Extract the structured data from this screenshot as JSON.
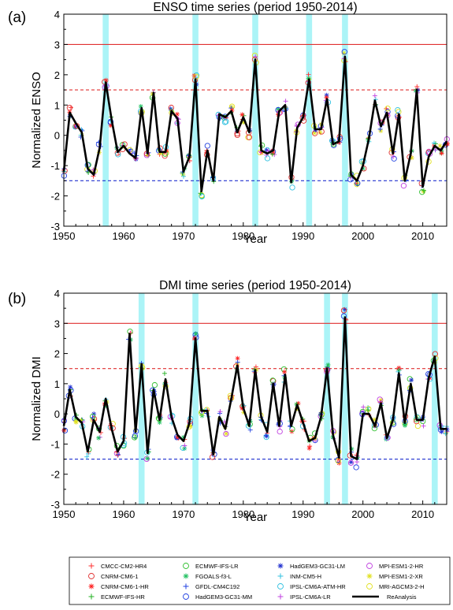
{
  "chart_data": [
    {
      "type": "line",
      "panel_label": "(a)",
      "title": "ENSO time series (period 1950-2014)",
      "xlabel": "Year",
      "ylabel": "Normalized ENSO",
      "xlim": [
        1950,
        2014
      ],
      "ylim": [
        -3,
        4
      ],
      "xticks": [
        "1950",
        "1960",
        "1970",
        "1980",
        "1990",
        "2000",
        "2010"
      ],
      "yticks": [
        "-3",
        "-2",
        "-1",
        "0",
        "1",
        "2",
        "3",
        "4"
      ],
      "ref_lines": [
        {
          "y": 3,
          "style": "solid",
          "color": "#e03030"
        },
        {
          "y": 1.5,
          "style": "dashed",
          "color": "#e03030"
        },
        {
          "y": -1.5,
          "style": "dashed",
          "color": "#2030d0"
        }
      ],
      "highlight_years": [
        1957,
        1972,
        1982,
        1991,
        1997
      ],
      "series": [
        {
          "name": "ReAnalysis",
          "x": [
            1950,
            1951,
            1952,
            1953,
            1954,
            1955,
            1956,
            1957,
            1958,
            1959,
            1960,
            1961,
            1962,
            1963,
            1964,
            1965,
            1966,
            1967,
            1968,
            1969,
            1970,
            1971,
            1972,
            1973,
            1974,
            1975,
            1976,
            1977,
            1978,
            1979,
            1980,
            1981,
            1982,
            1983,
            1984,
            1985,
            1986,
            1987,
            1988,
            1989,
            1990,
            1991,
            1992,
            1993,
            1994,
            1995,
            1996,
            1997,
            1998,
            1999,
            2000,
            2001,
            2002,
            2003,
            2004,
            2005,
            2006,
            2007,
            2008,
            2009,
            2010,
            2011,
            2012,
            2013,
            2014
          ],
          "y": [
            -1.2,
            0.75,
            0.4,
            0.1,
            -1.1,
            -1.3,
            -0.4,
            1.75,
            0.5,
            -0.55,
            -0.35,
            -0.6,
            -0.75,
            0.9,
            -0.6,
            1.4,
            -0.55,
            -0.55,
            0.8,
            0.55,
            -1.2,
            -0.7,
            1.85,
            -1.85,
            -0.5,
            -1.5,
            0.7,
            0.6,
            0.8,
            0.1,
            0.6,
            0.1,
            2.5,
            -0.5,
            -0.6,
            -0.5,
            0.8,
            1.0,
            -1.55,
            0.25,
            0.6,
            1.85,
            0.2,
            0.2,
            1.2,
            -0.3,
            -0.2,
            2.6,
            -1.3,
            -1.5,
            -1.0,
            -0.1,
            1.15,
            0.3,
            0.75,
            -0.6,
            0.7,
            -1.5,
            -0.6,
            1.5,
            -1.7,
            -0.7,
            -0.35,
            -0.5,
            -0.2
          ]
        }
      ]
    },
    {
      "type": "line",
      "panel_label": "(b)",
      "title": "DMI time series (period 1950-2014)",
      "xlabel": "Year",
      "ylabel": "Normalized DMI",
      "xlim": [
        1950,
        2014
      ],
      "ylim": [
        -3,
        4
      ],
      "xticks": [
        "1950",
        "1960",
        "1970",
        "1980",
        "1990",
        "2000",
        "2010"
      ],
      "yticks": [
        "-3",
        "-2",
        "-1",
        "0",
        "1",
        "2",
        "3",
        "4"
      ],
      "ref_lines": [
        {
          "y": 3,
          "style": "solid",
          "color": "#e03030"
        },
        {
          "y": 1.5,
          "style": "dashed",
          "color": "#e03030"
        },
        {
          "y": -1.5,
          "style": "dashed",
          "color": "#2030d0"
        }
      ],
      "highlight_years": [
        1963,
        1972,
        1994,
        1997,
        2012
      ],
      "series": [
        {
          "name": "ReAnalysis",
          "x": [
            1950,
            1951,
            1952,
            1953,
            1954,
            1955,
            1956,
            1957,
            1958,
            1959,
            1960,
            1961,
            1962,
            1963,
            1964,
            1965,
            1966,
            1967,
            1968,
            1969,
            1970,
            1971,
            1972,
            1973,
            1974,
            1975,
            1976,
            1977,
            1978,
            1979,
            1980,
            1981,
            1982,
            1983,
            1984,
            1985,
            1986,
            1987,
            1988,
            1989,
            1990,
            1991,
            1992,
            1993,
            1994,
            1995,
            1996,
            1997,
            1998,
            1999,
            2000,
            2001,
            2002,
            2003,
            2004,
            2005,
            2006,
            2007,
            2008,
            2009,
            2010,
            2011,
            2012,
            2013,
            2014
          ],
          "y": [
            -0.4,
            0.8,
            -0.1,
            -0.3,
            -1.25,
            -0.2,
            -0.6,
            0.5,
            -0.5,
            -1.25,
            -0.9,
            2.65,
            -0.6,
            1.65,
            -1.3,
            0.8,
            -0.2,
            1.15,
            -0.1,
            -0.7,
            -0.9,
            -0.3,
            2.5,
            0.1,
            0.1,
            -1.35,
            -0.1,
            -0.5,
            0.5,
            1.6,
            0.2,
            -0.4,
            1.45,
            -0.1,
            -0.6,
            1.0,
            -0.4,
            1.3,
            -0.4,
            0.3,
            -0.3,
            -0.9,
            -0.8,
            -0.1,
            1.5,
            -0.7,
            -1.45,
            3.2,
            -1.4,
            -1.5,
            0.0,
            0.0,
            -0.4,
            0.35,
            -0.8,
            -0.2,
            1.35,
            -0.3,
            1.0,
            -0.2,
            -0.2,
            1.2,
            1.9,
            -0.5,
            -0.5
          ]
        }
      ]
    }
  ],
  "legend": {
    "items": [
      {
        "label": "CMCC-CM2-HR4",
        "marker": "+",
        "color": "#ff3030"
      },
      {
        "label": "CNRM-CM6-1",
        "marker": "o",
        "color": "#e03030"
      },
      {
        "label": "CNRM-CM6-1-HR",
        "marker": "*",
        "color": "#ff2020"
      },
      {
        "label": "ECMWF-IFS-HR",
        "marker": "+",
        "color": "#20b020"
      },
      {
        "label": "ECMWF-IFS-LR",
        "marker": "o",
        "color": "#30c030"
      },
      {
        "label": "FGOALS-f3-L",
        "marker": "*",
        "color": "#20c060"
      },
      {
        "label": "GFDL-CM4C192",
        "marker": "+",
        "color": "#2040e0"
      },
      {
        "label": "HadGEM3-GC31-MM",
        "marker": "o",
        "color": "#2040e0"
      },
      {
        "label": "HadGEM3-GC31-LM",
        "marker": "*",
        "color": "#2030d0"
      },
      {
        "label": "INM-CM5-H",
        "marker": "+",
        "color": "#30c0e0"
      },
      {
        "label": "IPSL-CM6A-ATM-HR",
        "marker": "o",
        "color": "#30c0e0"
      },
      {
        "label": "IPSL-CM6A-LR",
        "marker": "+",
        "color": "#c040e0"
      },
      {
        "label": "MPI-ESM1-2-HR",
        "marker": "o",
        "color": "#c040e0"
      },
      {
        "label": "MPI-ESM1-2-XR",
        "marker": "*",
        "color": "#e0e020"
      },
      {
        "label": "MRI-AGCM3-2-H",
        "marker": "o",
        "color": "#e0e020"
      },
      {
        "label": "ReAnalysis",
        "marker": "line",
        "color": "#000000"
      }
    ]
  }
}
